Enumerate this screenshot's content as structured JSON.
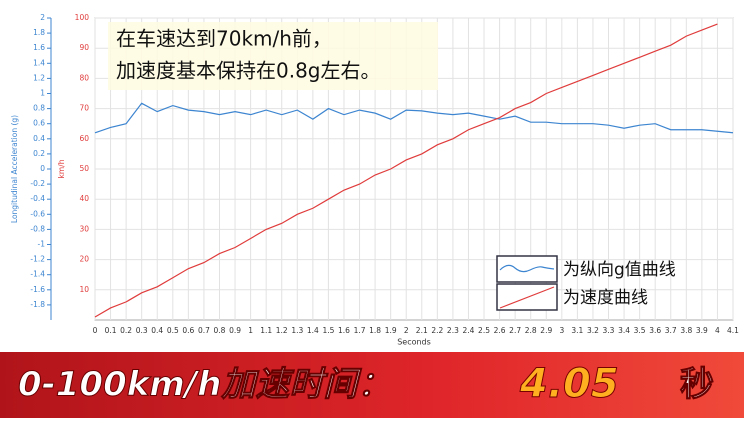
{
  "chart_data": {
    "type": "line",
    "y_label": "Longitudinal Acceleration (g)",
    "y2_label": "km/h",
    "x_label": "Seconds",
    "annotation": [
      "在车速达到70km/h前，",
      "加速度基本保持在0.8g左右。"
    ],
    "x": [
      0,
      0.1,
      0.2,
      0.3,
      0.4,
      0.5,
      0.6,
      0.7,
      0.8,
      0.9,
      1,
      1.1,
      1.2,
      1.3,
      1.4,
      1.5,
      1.6,
      1.7,
      1.8,
      1.9,
      2,
      2.1,
      2.2,
      2.3,
      2.4,
      2.5,
      2.6,
      2.7,
      2.8,
      2.9,
      3,
      3.1,
      3.2,
      3.3,
      3.4,
      3.5,
      3.6,
      3.7,
      3.8,
      3.9,
      4,
      4.1
    ],
    "series": [
      {
        "name": "为纵向g值曲线",
        "color": "#3d85d0",
        "axis": "y",
        "values": [
          0.48,
          0.55,
          0.6,
          0.87,
          0.76,
          0.84,
          0.78,
          0.76,
          0.72,
          0.76,
          0.72,
          0.78,
          0.72,
          0.78,
          0.66,
          0.8,
          0.72,
          0.78,
          0.74,
          0.66,
          0.78,
          0.77,
          0.74,
          0.72,
          0.74,
          0.7,
          0.66,
          0.7,
          0.62,
          0.62,
          0.6,
          0.6,
          0.6,
          0.58,
          0.54,
          0.58,
          0.6,
          0.52,
          0.52,
          0.52,
          0.5,
          0.48
        ]
      },
      {
        "name": "为速度曲线",
        "color": "#e03c3c",
        "axis": "y2",
        "values": [
          1,
          4,
          6,
          9,
          11,
          14,
          17,
          19,
          22,
          24,
          27,
          30,
          32,
          35,
          37,
          40,
          43,
          45,
          48,
          50,
          53,
          55,
          58,
          60,
          63,
          65,
          67,
          70,
          72,
          75,
          77,
          79,
          81,
          83,
          85,
          87,
          89,
          91,
          94,
          96,
          98,
          null
        ]
      }
    ],
    "xlim": [
      0,
      4.1
    ],
    "xticks": [
      0,
      0.1,
      0.2,
      0.3,
      0.4,
      0.5,
      0.6,
      0.7,
      0.8,
      0.9,
      1,
      1.1,
      1.2,
      1.3,
      1.4,
      1.5,
      1.6,
      1.7,
      1.8,
      1.9,
      2,
      2.1,
      2.2,
      2.3,
      2.4,
      2.5,
      2.6,
      2.7,
      2.8,
      2.9,
      3,
      3.1,
      3.2,
      3.3,
      3.4,
      3.5,
      3.6,
      3.7,
      3.8,
      3.9,
      4,
      4.1
    ],
    "ylim": [
      -2,
      2
    ],
    "yticks": [
      -1.8,
      -1.6,
      -1.4,
      -1.2,
      -1,
      -0.8,
      -0.6,
      -0.4,
      -0.2,
      0,
      0.2,
      0.4,
      0.6,
      0.8,
      1,
      1.2,
      1.4,
      1.6,
      1.8,
      2
    ],
    "y2lim": [
      0,
      100
    ],
    "y2ticks": [
      10,
      20,
      30,
      40,
      50,
      60,
      70,
      80,
      90,
      100
    ],
    "grid": true
  },
  "banner": {
    "label": "0-100km/h加速时间：",
    "value": "4.05",
    "unit": "秒"
  }
}
